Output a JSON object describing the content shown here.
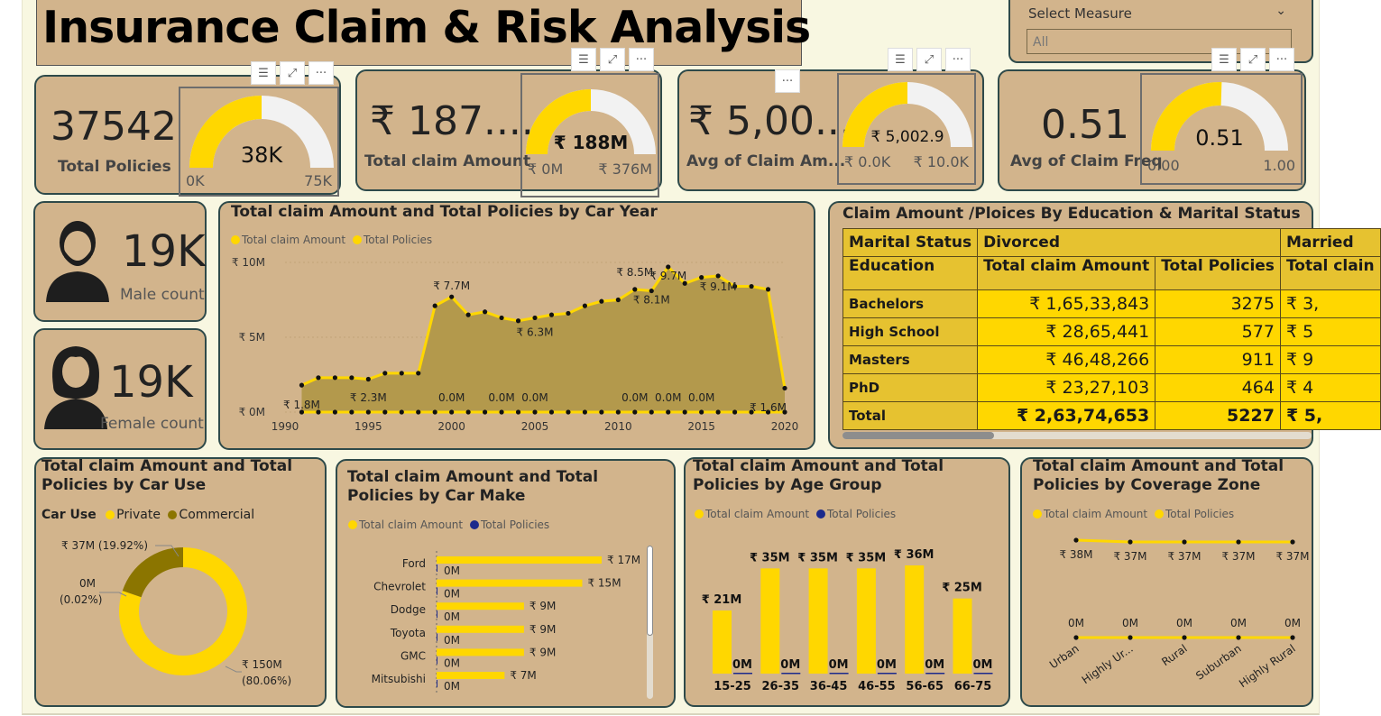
{
  "title": "Insurance Claim & Risk Analysis",
  "slicer": {
    "label": "Select Measure",
    "value": "All"
  },
  "kpis": [
    {
      "value": "37542",
      "label": "Total Policies",
      "gauge_center": "38K",
      "gauge_min": "0K",
      "gauge_max": "75K",
      "gauge_fraction": 0.5
    },
    {
      "value": "₹ 187....",
      "label": "Total claim Amount",
      "gauge_center": "₹ 188M",
      "gauge_min": "₹ 0M",
      "gauge_max": "₹ 376M",
      "gauge_fraction": 0.5
    },
    {
      "value": "₹ 5,00...",
      "label": "Avg of Claim Am...",
      "gauge_center": "₹ 5,002.9",
      "gauge_min": "₹ 0.0K",
      "gauge_max": "₹ 10.0K",
      "gauge_fraction": 0.5
    },
    {
      "value": "0.51",
      "label": "Avg of Claim Freq",
      "gauge_center": "0.51",
      "gauge_min": "0.00",
      "gauge_max": "1.00",
      "gauge_fraction": 0.51
    }
  ],
  "gender": {
    "male": {
      "value": "19K",
      "label": "Male count"
    },
    "female": {
      "value": "19K",
      "label": "Female count"
    }
  },
  "car_year_chart": {
    "title": "Total claim Amount and Total Policies by Car Year",
    "legend": [
      "Total claim Amount",
      "Total Policies"
    ],
    "y_ticks": [
      "₹ 10M",
      "₹ 5M",
      "₹ 0M"
    ],
    "x_ticks": [
      "1990",
      "1995",
      "2000",
      "2005",
      "2010",
      "2015",
      "2020"
    ],
    "labels": [
      "₹ 7.7M",
      "₹ 8.5M",
      "₹ 9.7M",
      "₹ 9.1M",
      "₹ 8.1M",
      "₹ 6.3M",
      "₹ 1.8M",
      "₹ 2.3M",
      "0.0M",
      "0.0M",
      "0.0M",
      "0.0M",
      "0.0M",
      "0.0M",
      "₹ 1.6M"
    ]
  },
  "edu_matrix": {
    "title": "Claim Amount /Ploices By Education & Marital Status",
    "header1": [
      "Marital Status",
      "Divorced",
      "Married"
    ],
    "header2": [
      "Education",
      "Total claim Amount",
      "Total Policies",
      "Total clain"
    ],
    "rows": [
      [
        "Bachelors",
        "₹ 1,65,33,843",
        "3275",
        "₹ 3,"
      ],
      [
        "High School",
        "₹ 28,65,441",
        "577",
        "₹ 5"
      ],
      [
        "Masters",
        "₹ 46,48,266",
        "911",
        "₹ 9"
      ],
      [
        "PhD",
        "₹ 23,27,103",
        "464",
        "₹ 4"
      ]
    ],
    "total": [
      "Total",
      "₹ 2,63,74,653",
      "5227",
      "₹ 5,"
    ]
  },
  "car_use_chart": {
    "title": "Total claim Amount and Total Policies by Car Use",
    "legend_title": "Car Use",
    "legend": [
      "Private",
      "Commercial"
    ],
    "labels": [
      "₹ 37M (19.92%)",
      "0M",
      "(0.02%)",
      "₹ 150M",
      "(80.06%)"
    ]
  },
  "car_make_chart": {
    "title": "Total claim Amount and Total Policies by Car Make",
    "legend": [
      "Total claim Amount",
      "Total Policies"
    ],
    "categories": [
      "Ford",
      "Chevrolet",
      "Dodge",
      "Toyota",
      "GMC",
      "Mitsubishi"
    ],
    "claim_labels": [
      "₹ 17M",
      "₹ 15M",
      "₹ 9M",
      "₹ 9M",
      "₹ 9M",
      "₹ 7M"
    ],
    "policy_labels": [
      "0M",
      "0M",
      "0M",
      "0M",
      "0M",
      "0M"
    ]
  },
  "age_chart": {
    "title": "Total claim Amount and Total Policies by Age Group",
    "legend": [
      "Total claim Amount",
      "Total Policies"
    ],
    "categories": [
      "15-25",
      "26-35",
      "36-45",
      "46-55",
      "56-65",
      "66-75"
    ],
    "claim_labels": [
      "₹ 21M",
      "₹ 35M",
      "₹ 35M",
      "₹ 35M",
      "₹ 36M",
      "₹ 25M"
    ],
    "policy_labels": [
      "0M",
      "0M",
      "0M",
      "0M",
      "0M",
      "0M"
    ]
  },
  "zone_chart": {
    "title": "Total claim Amount and Total Policies by Coverage Zone",
    "legend": [
      "Total claim Amount",
      "Total Policies"
    ],
    "categories": [
      "Urban",
      "Highly Ur...",
      "Rural",
      "Suburban",
      "Highly Rural"
    ],
    "claim_labels": [
      "₹ 38M",
      "₹ 37M",
      "₹ 37M",
      "₹ 37M",
      "₹ 37M"
    ],
    "policy_labels": [
      "0M",
      "0M",
      "0M",
      "0M",
      "0M"
    ]
  },
  "chart_data": [
    {
      "type": "area",
      "title": "Total claim Amount and Total Policies by Car Year",
      "x": [
        1991,
        1992,
        1993,
        1994,
        1995,
        1996,
        1997,
        1998,
        1999,
        2000,
        2001,
        2002,
        2003,
        2004,
        2005,
        2006,
        2007,
        2008,
        2009,
        2010,
        2011,
        2012,
        2013,
        2014,
        2015,
        2016,
        2017,
        2018,
        2019,
        2020
      ],
      "series": [
        {
          "name": "Total claim Amount",
          "values": [
            1.8,
            2.3,
            2.3,
            2.3,
            2.2,
            2.6,
            2.6,
            2.6,
            7.1,
            7.7,
            6.5,
            6.7,
            6.3,
            6.1,
            6.3,
            6.5,
            6.6,
            7.1,
            7.4,
            7.5,
            8.2,
            8.1,
            9.7,
            8.6,
            9.0,
            9.1,
            8.4,
            8.4,
            8.2,
            1.6
          ]
        },
        {
          "name": "Total Policies",
          "values": [
            0,
            0,
            0,
            0,
            0,
            0,
            0,
            0,
            0,
            0,
            0,
            0,
            0,
            0,
            0,
            0,
            0,
            0,
            0,
            0,
            0,
            0,
            0,
            0,
            0,
            0,
            0,
            0,
            0,
            0
          ]
        }
      ],
      "y_unit": "₹ M",
      "ylim": [
        0,
        10
      ]
    },
    {
      "type": "pie",
      "title": "Total claim Amount and Total Policies by Car Use",
      "categories": [
        "Private",
        "Commercial"
      ],
      "values": [
        150,
        37
      ],
      "percent": [
        80.06,
        19.92
      ]
    },
    {
      "type": "bar",
      "title": "Total claim Amount and Total Policies by Car Make",
      "categories": [
        "Ford",
        "Chevrolet",
        "Dodge",
        "Toyota",
        "GMC",
        "Mitsubishi"
      ],
      "series": [
        {
          "name": "Total claim Amount",
          "values": [
            17,
            15,
            9,
            9,
            9,
            7
          ]
        },
        {
          "name": "Total Policies",
          "values": [
            0,
            0,
            0,
            0,
            0,
            0
          ]
        }
      ]
    },
    {
      "type": "bar",
      "title": "Total claim Amount and Total Policies by Age Group",
      "categories": [
        "15-25",
        "26-35",
        "36-45",
        "46-55",
        "56-65",
        "66-75"
      ],
      "series": [
        {
          "name": "Total claim Amount",
          "values": [
            21,
            35,
            35,
            35,
            36,
            25
          ]
        },
        {
          "name": "Total Policies",
          "values": [
            0,
            0,
            0,
            0,
            0,
            0
          ]
        }
      ]
    },
    {
      "type": "line",
      "title": "Total claim Amount and Total Policies by Coverage Zone",
      "categories": [
        "Urban",
        "Highly Ur...",
        "Rural",
        "Suburban",
        "Highly Rural"
      ],
      "series": [
        {
          "name": "Total claim Amount",
          "values": [
            38,
            37,
            37,
            37,
            37
          ]
        },
        {
          "name": "Total Policies",
          "values": [
            0,
            0,
            0,
            0,
            0
          ]
        }
      ]
    }
  ],
  "colors": {
    "card": "#d2b48c",
    "accent": "#ffd700",
    "border": "#2e4a4a",
    "commercial": "#8b7500",
    "navy": "#1c2a8c"
  }
}
